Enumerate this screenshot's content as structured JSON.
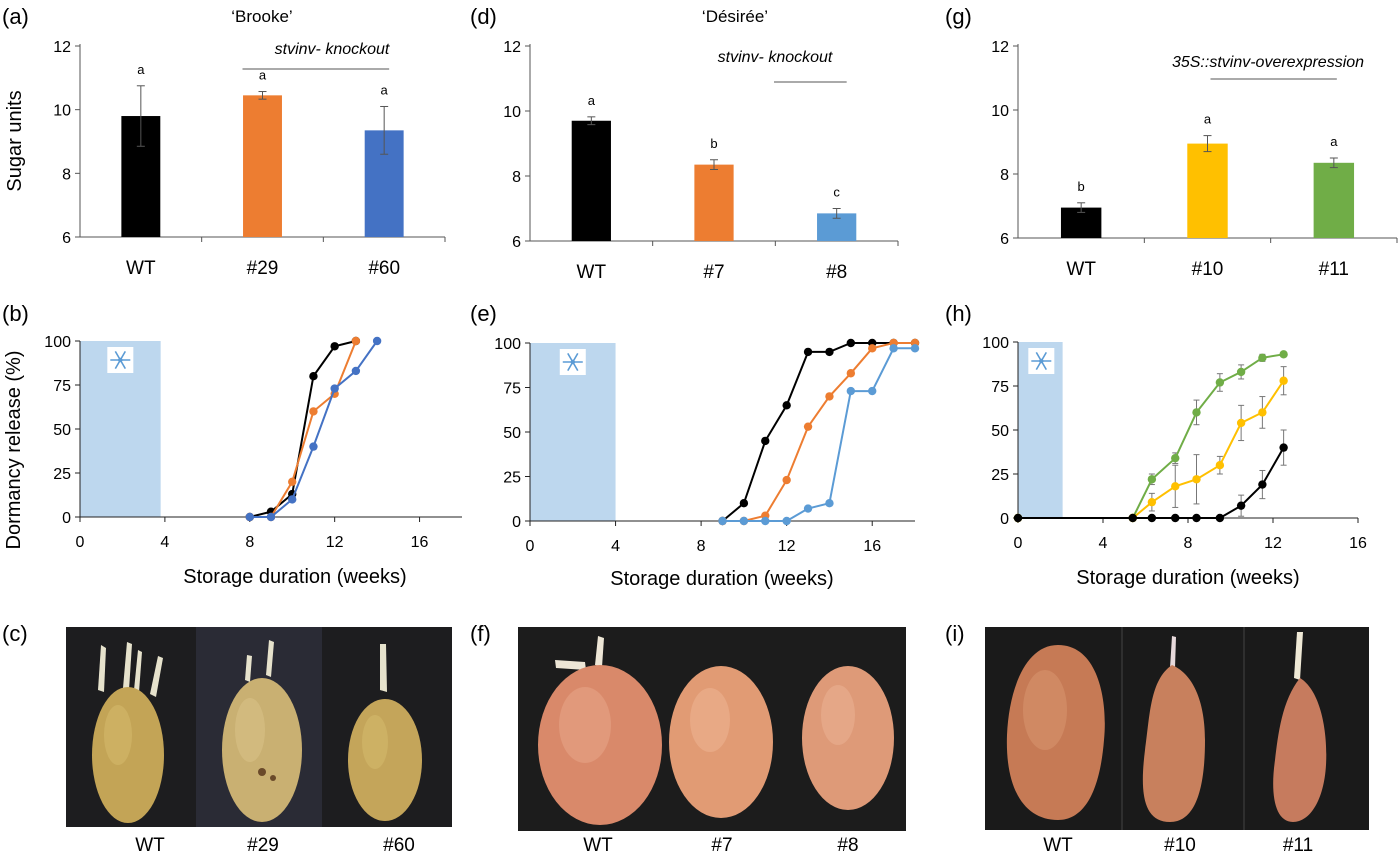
{
  "colors": {
    "black": "#000000",
    "orange": "#ED7D31",
    "blue_dark": "#4472C4",
    "blue_light": "#5B9BD5",
    "yellow": "#FFC000",
    "green": "#70AD47",
    "cold_band": "#BDD7EE",
    "snowflake": "#5B9BD5",
    "photo_bg": "#1b1b1b",
    "tuber_yellow": "#C2A55A",
    "tuber_red": "#D88968",
    "sprout": "#E8E4D2"
  },
  "icons": {
    "cold_storage": "snowflake-icon"
  },
  "chart_data": [
    {
      "panel": "(a)",
      "type": "bar",
      "title": "‘Brooke’",
      "ylabel": "Sugar units",
      "ylim": [
        6,
        12
      ],
      "yticks": [
        "6",
        "8",
        "10",
        "12"
      ],
      "categories": [
        "WT",
        "#29",
        "#60"
      ],
      "values": [
        9.8,
        10.45,
        9.35
      ],
      "errors": [
        0.95,
        0.12,
        0.75
      ],
      "letters": [
        "a",
        "a",
        "a"
      ],
      "bar_colors": [
        "#000000",
        "#ED7D31",
        "#4472C4"
      ],
      "bracket": {
        "label": "stvinv- knockout",
        "from": 1,
        "to": 2
      }
    },
    {
      "panel": "(d)",
      "type": "bar",
      "title": "‘Désirée’",
      "ylabel": "",
      "ylim": [
        6,
        12
      ],
      "yticks": [
        "6",
        "8",
        "10",
        "12"
      ],
      "categories": [
        "WT",
        "#7",
        "#8"
      ],
      "values": [
        9.7,
        8.35,
        6.85
      ],
      "errors": [
        0.12,
        0.15,
        0.15
      ],
      "letters": [
        "a",
        "b",
        "c"
      ],
      "bar_colors": [
        "#000000",
        "#ED7D31",
        "#5B9BD5"
      ],
      "bracket": {
        "label": "stvinv- knockout",
        "from": 1,
        "to": 2
      }
    },
    {
      "panel": "(g)",
      "type": "bar",
      "title": "",
      "ylabel": "",
      "ylim": [
        6,
        12
      ],
      "yticks": [
        "6",
        "8",
        "10",
        "12"
      ],
      "categories": [
        "WT",
        "#10",
        "#11"
      ],
      "values": [
        6.95,
        8.95,
        8.35
      ],
      "errors": [
        0.15,
        0.25,
        0.15
      ],
      "letters": [
        "b",
        "a",
        "a"
      ],
      "bar_colors": [
        "#000000",
        "#FFC000",
        "#70AD47"
      ],
      "bracket": {
        "label": "35S::stvinv-overexpression",
        "from": 1,
        "to": 2
      }
    },
    {
      "panel": "(b)",
      "type": "line",
      "xlabel": "Storage duration (weeks)",
      "ylabel": "Dormancy release (%)",
      "xlim": [
        0,
        18
      ],
      "ylim": [
        0,
        100
      ],
      "xticks": [
        "0",
        "4",
        "8",
        "12",
        "16"
      ],
      "yticks": [
        "0",
        "25",
        "50",
        "75",
        "100"
      ],
      "cold_period": [
        0,
        3.8
      ],
      "series": [
        {
          "color": "#000000",
          "x": [
            8,
            9,
            10,
            11,
            12,
            13
          ],
          "y": [
            0,
            3,
            13,
            80,
            97,
            100
          ]
        },
        {
          "color": "#ED7D31",
          "x": [
            8,
            9,
            10,
            11,
            12,
            13
          ],
          "y": [
            0,
            0,
            20,
            60,
            70,
            100
          ]
        },
        {
          "color": "#4472C4",
          "x": [
            8,
            9,
            10,
            11,
            12,
            13,
            14
          ],
          "y": [
            0,
            0,
            10,
            40,
            73,
            83,
            100
          ]
        }
      ]
    },
    {
      "panel": "(e)",
      "type": "line",
      "xlabel": "Storage duration (weeks)",
      "ylabel": "",
      "xlim": [
        0,
        18
      ],
      "ylim": [
        0,
        100
      ],
      "xticks": [
        "0",
        "4",
        "8",
        "12",
        "16"
      ],
      "yticks": [
        "0",
        "25",
        "50",
        "75",
        "100"
      ],
      "cold_period": [
        0,
        4
      ],
      "series": [
        {
          "color": "#000000",
          "x": [
            9,
            10,
            11,
            12,
            13,
            14,
            15,
            16,
            17,
            18
          ],
          "y": [
            0,
            10,
            45,
            65,
            95,
            95,
            100,
            100,
            100,
            100
          ]
        },
        {
          "color": "#ED7D31",
          "x": [
            9,
            10,
            11,
            12,
            13,
            14,
            15,
            16,
            17,
            18
          ],
          "y": [
            0,
            0,
            3,
            23,
            53,
            70,
            83,
            97,
            100,
            100
          ]
        },
        {
          "color": "#5B9BD5",
          "x": [
            9,
            10,
            11,
            12,
            13,
            14,
            15,
            16,
            17,
            18
          ],
          "y": [
            0,
            0,
            0,
            0,
            7,
            10,
            73,
            73,
            97,
            97
          ]
        }
      ]
    },
    {
      "panel": "(h)",
      "type": "line",
      "xlabel": "Storage duration (weeks)",
      "ylabel": "",
      "xlim": [
        0,
        16
      ],
      "ylim": [
        0,
        100
      ],
      "xticks": [
        "0",
        "4",
        "8",
        "12",
        "16"
      ],
      "yticks": [
        "0",
        "25",
        "50",
        "75",
        "100"
      ],
      "cold_period": [
        0,
        2.1
      ],
      "series": [
        {
          "color": "#70AD47",
          "x": [
            0,
            5.4,
            6.3,
            7.4,
            8.4,
            9.5,
            10.5,
            11.5,
            12.5
          ],
          "y": [
            0,
            0,
            22,
            34,
            60,
            77,
            83,
            91,
            93
          ],
          "err": [
            0,
            0,
            3,
            3,
            7,
            5,
            4,
            2,
            1
          ]
        },
        {
          "color": "#FFC000",
          "x": [
            0,
            5.4,
            6.3,
            7.4,
            8.4,
            9.5,
            10.5,
            11.5,
            12.5
          ],
          "y": [
            0,
            0,
            9,
            18,
            22,
            30,
            54,
            60,
            78
          ],
          "err": [
            0,
            0,
            5,
            12,
            14,
            5,
            10,
            9,
            8
          ]
        },
        {
          "color": "#000000",
          "x": [
            0,
            5.4,
            6.3,
            7.4,
            8.4,
            9.5,
            10.5,
            11.5,
            12.5
          ],
          "y": [
            0,
            0,
            0,
            0,
            0,
            0,
            7,
            19,
            40
          ],
          "err": [
            0,
            0,
            0,
            0,
            0,
            0,
            6,
            8,
            10
          ]
        }
      ]
    }
  ],
  "photos": [
    {
      "panel": "(c)",
      "labels": [
        "WT",
        "#29",
        "#60"
      ]
    },
    {
      "panel": "(f)",
      "labels": [
        "WT",
        "#7",
        "#8"
      ]
    },
    {
      "panel": "(i)",
      "labels": [
        "WT",
        "#10",
        "#11"
      ]
    }
  ]
}
